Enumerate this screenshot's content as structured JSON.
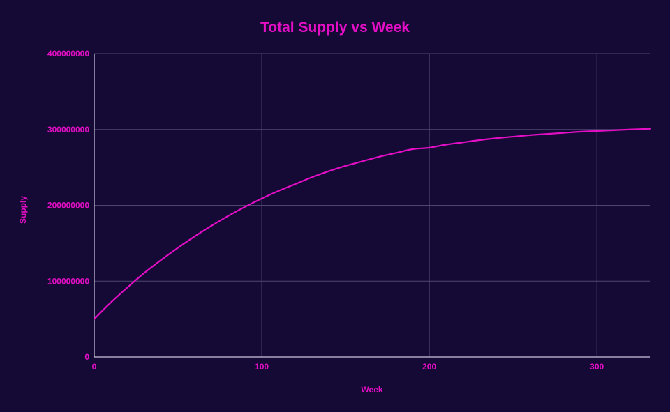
{
  "colors": {
    "background": "#150a36",
    "accent": "#e40fc5",
    "grid": "#4f4670",
    "axis": "#cbc6dc"
  },
  "chart_data": {
    "type": "line",
    "title": "Total Supply vs Week",
    "xlabel": "Week",
    "ylabel": "Supply",
    "xlim": [
      0,
      332
    ],
    "ylim": [
      0,
      400000000
    ],
    "x_ticks": [
      0,
      100,
      200,
      300
    ],
    "x_tick_labels": [
      "0",
      "100",
      "200",
      "300"
    ],
    "y_ticks": [
      0,
      100000000,
      200000000,
      300000000,
      400000000
    ],
    "y_tick_labels": [
      "0",
      "100000000",
      "200000000",
      "300000000",
      "400000000"
    ],
    "grid": true,
    "legend": "none",
    "series": [
      {
        "x": [
          0,
          10,
          20,
          30,
          40,
          50,
          60,
          70,
          80,
          90,
          100,
          110,
          120,
          130,
          140,
          150,
          160,
          170,
          180,
          190,
          200,
          210,
          220,
          230,
          240,
          250,
          260,
          270,
          280,
          290,
          300,
          310,
          320,
          332
        ],
        "values": [
          50000000,
          72000000,
          92000000,
          111000000,
          128000000,
          144000000,
          159000000,
          173000000,
          186000000,
          198000000,
          209000000,
          219000000,
          228000000,
          237000000,
          245000000,
          252000000,
          258000000,
          264000000,
          269000000,
          274000000,
          276000000,
          280000000,
          283000000,
          286000000,
          288500000,
          290500000,
          292500000,
          294000000,
          295500000,
          297000000,
          298000000,
          299000000,
          300000000,
          301000000
        ]
      }
    ]
  }
}
